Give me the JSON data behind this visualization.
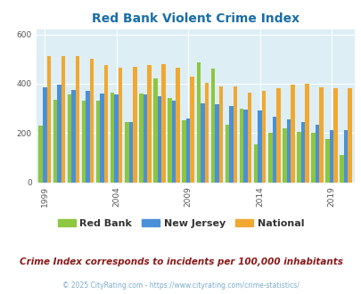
{
  "title": "Red Bank Violent Crime Index",
  "title_color": "#1a6fa8",
  "years": [
    1999,
    2000,
    2001,
    2002,
    2003,
    2004,
    2005,
    2006,
    2007,
    2008,
    2009,
    2010,
    2011,
    2012,
    2013,
    2014,
    2015,
    2016,
    2017,
    2018,
    2019,
    2020
  ],
  "red_bank": [
    228,
    335,
    355,
    330,
    330,
    365,
    245,
    360,
    420,
    340,
    250,
    485,
    460,
    235,
    300,
    155,
    200,
    220,
    205,
    200,
    175,
    110
  ],
  "new_jersey": [
    385,
    395,
    375,
    370,
    360,
    355,
    245,
    355,
    350,
    330,
    260,
    320,
    315,
    310,
    295,
    290,
    265,
    255,
    245,
    235,
    210,
    210
  ],
  "national": [
    510,
    510,
    510,
    500,
    475,
    465,
    470,
    475,
    480,
    465,
    430,
    405,
    390,
    390,
    365,
    370,
    383,
    395,
    400,
    385,
    380,
    380
  ],
  "bar_colors": [
    "#8dc63f",
    "#4a90d9",
    "#f0a830"
  ],
  "bg_color": "#ddeef5",
  "ylim": [
    0,
    620
  ],
  "yticks": [
    0,
    200,
    400,
    600
  ],
  "xlabel_ticks": [
    1999,
    2004,
    2009,
    2014,
    2019
  ],
  "legend_labels": [
    "Red Bank",
    "New Jersey",
    "National"
  ],
  "note": "Crime Index corresponds to incidents per 100,000 inhabitants",
  "note_color": "#8b1a1a",
  "copyright_text": "© 2025 CityRating.com - https://www.cityrating.com/crime-statistics/",
  "copyright_color": "#7aaccc",
  "grid_color": "#ffffff"
}
